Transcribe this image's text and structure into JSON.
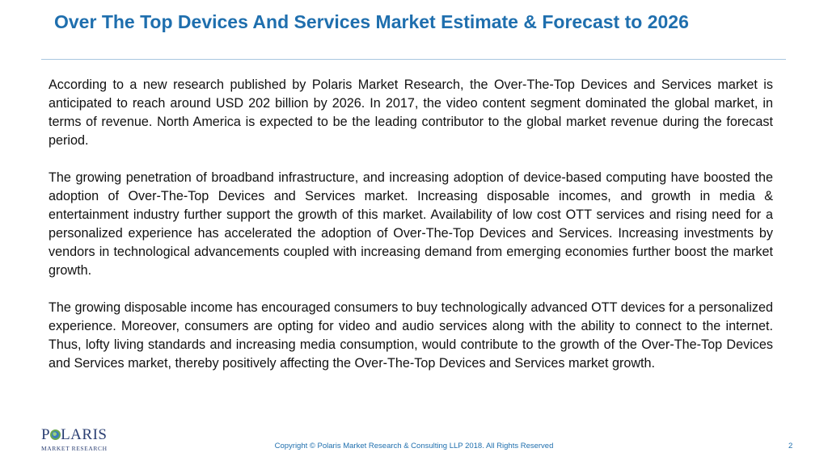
{
  "slide": {
    "title": "Over The Top Devices And Services Market Estimate & Forecast to 2026",
    "paragraphs": [
      "According to a new research published by Polaris Market Research, the Over-The-Top Devices and Services market is anticipated to reach around USD 202 billion by 2026. In 2017, the video content segment dominated the global market, in terms of revenue. North America is expected to be the leading contributor to the global market revenue during the forecast period.",
      "The growing penetration of broadband infrastructure, and increasing adoption of device-based computing have boosted the adoption of Over-The-Top Devices and Services market. Increasing disposable incomes, and growth in media & entertainment industry further support the growth of this market. Availability of low cost OTT services and rising need for a personalized experience has accelerated the adoption of Over-The-Top Devices and Services. Increasing investments by vendors in technological advancements coupled with increasing demand from emerging economies further boost the market growth.",
      "The growing disposable income has encouraged consumers to buy technologically advanced OTT devices for a personalized experience. Moreover, consumers are opting for video and audio services along with the ability to connect to the internet. Thus, lofty living standards and increasing media consumption, would contribute to the growth of the Over-The-Top Devices and Services market, thereby positively affecting the Over-The-Top Devices and Services market growth."
    ]
  },
  "footer": {
    "logo_word_start": "P",
    "logo_word_end": "LARIS",
    "logo_subtitle": "MARKET RESEARCH",
    "copyright": "Copyright © Polaris Market Research & Consulting LLP 2018. All Rights Reserved",
    "page_number": "2"
  },
  "colors": {
    "title": "#1f6fae",
    "body_text": "#111111",
    "logo": "#2b3f73"
  },
  "icons": {
    "logo_mark": "globe-icon"
  }
}
